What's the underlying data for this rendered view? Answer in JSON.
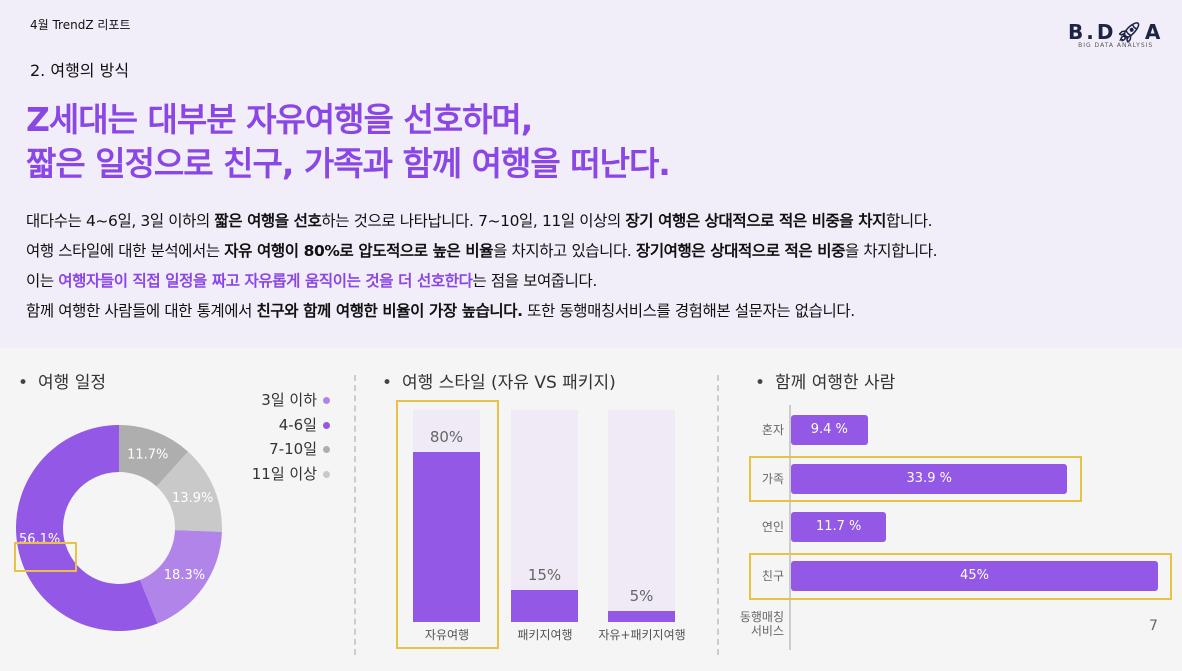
{
  "header": {
    "report": "4월 TrendZ 리포트",
    "logo_main": "B.D.A",
    "logo_sub": "BIG DATA ANALYSIS",
    "section": "2. 여행의 방식",
    "headline": [
      "Z세대는 대부분 자유여행을 선호하며,",
      "짧은 일정으로 친구, 가족과 함께 여행을 떠난다."
    ]
  },
  "body": [
    [
      {
        "t": "대다수는 4~6일, 3일 이하의 "
      },
      {
        "t": "짧은 여행을 선호",
        "s": "b"
      },
      {
        "t": "하는 것으로 나타납니다. 7~10일, 11일 이상의 "
      },
      {
        "t": "장기 여행은 상대적으로 적은 비중을 차지",
        "s": "b"
      },
      {
        "t": "합니다."
      }
    ],
    [
      {
        "t": "여행 스타일에 대한 분석에서는 "
      },
      {
        "t": "자유 여행이 80%로 압도적으로 높은 비율",
        "s": "b"
      },
      {
        "t": "을 차지하고 있습니다. "
      },
      {
        "t": "장기여행은 상대적으로 적은 비중",
        "s": "b"
      },
      {
        "t": "을 차지합니다."
      }
    ],
    [
      {
        "t": "이는 "
      },
      {
        "t": "여행자들이 직접 일정을 짜고 자유롭게 움직이는 것을 더 선호한다",
        "s": "p"
      },
      {
        "t": "는 점을 보여줍니다."
      }
    ],
    [
      {
        "t": "함께 여행한 사람들에 대한 통계에서 "
      },
      {
        "t": "친구와 함께 여행한 비율이 가장 높습니다.",
        "s": "b"
      },
      {
        "t": "  또한 동행매칭서비스를 경험해본 설문자는 없습니다."
      }
    ]
  ],
  "page_number": "7",
  "colors": {
    "accent": "#8b47e6",
    "bar": "#9358e5",
    "light_purple": "#b184ea",
    "dark_gray": "#aeaeae",
    "light_gray": "#c9c9c9",
    "highlight": "#e8c146"
  },
  "chart_data": [
    {
      "type": "pie",
      "title": "여행 일정",
      "categories": [
        "3일 이하",
        "4-6일",
        "7-10일",
        "11일 이상"
      ],
      "values": [
        18.3,
        56.1,
        11.7,
        13.9
      ],
      "labels": [
        "18.3%",
        "56.1%",
        "11.7%",
        "13.9%"
      ],
      "colors": [
        "#b184ea",
        "#9358e5",
        "#aeaeae",
        "#c9c9c9"
      ],
      "donut": true,
      "legend": "top-right",
      "highlight": "4-6일"
    },
    {
      "type": "bar",
      "title": "여행 스타일 (자유 VS 패키지)",
      "categories": [
        "자유여행",
        "패키지여행",
        "자유+패키지여행"
      ],
      "values": [
        80,
        15,
        5
      ],
      "labels": [
        "80%",
        "15%",
        "5%"
      ],
      "ylim": [
        0,
        100
      ],
      "highlight": "자유여행"
    },
    {
      "type": "bar",
      "orientation": "horizontal",
      "title": "함께 여행한 사람",
      "categories": [
        "혼자",
        "가족",
        "연인",
        "친구",
        "동행매칭\n서비스"
      ],
      "values": [
        9.4,
        33.9,
        11.7,
        45,
        0
      ],
      "labels": [
        "9.4 %",
        "33.9 %",
        "11.7 %",
        "45%",
        ""
      ],
      "xlim": [
        0,
        45
      ],
      "highlight": [
        "가족",
        "친구"
      ]
    }
  ]
}
